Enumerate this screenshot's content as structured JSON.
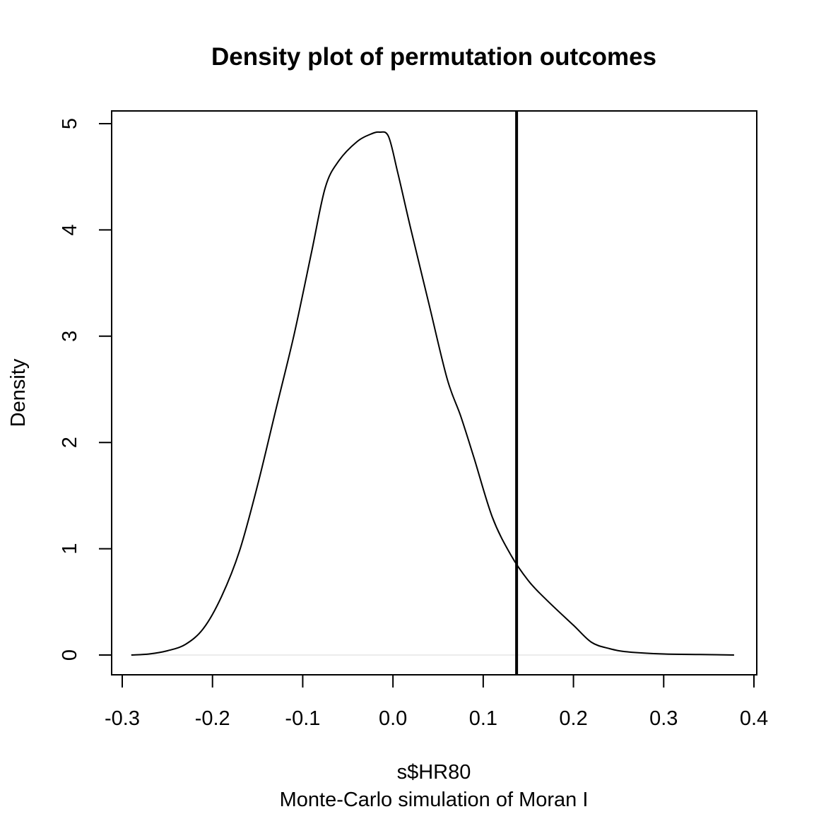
{
  "chart_data": {
    "type": "line",
    "title": "Density plot of permutation outcomes",
    "xlabel": "s$HR80",
    "subtitle": "Monte-Carlo simulation of Moran I",
    "ylabel": "Density",
    "xlim": [
      -0.3,
      0.4
    ],
    "ylim": [
      0,
      5
    ],
    "x_ticks": [
      -0.3,
      -0.2,
      -0.1,
      0.0,
      0.1,
      0.2,
      0.3,
      0.4
    ],
    "x_tick_labels": [
      "-0.3",
      "-0.2",
      "-0.1",
      "0.0",
      "0.1",
      "0.2",
      "0.3",
      "0.4"
    ],
    "y_ticks": [
      0,
      1,
      2,
      3,
      4,
      5
    ],
    "y_tick_labels": [
      "0",
      "1",
      "2",
      "3",
      "4",
      "5"
    ],
    "grid": false,
    "vertical_line": {
      "x": 0.137
    },
    "series": [
      {
        "x": [
          -0.29,
          -0.27,
          -0.25,
          -0.23,
          -0.21,
          -0.19,
          -0.17,
          -0.15,
          -0.13,
          -0.11,
          -0.09,
          -0.075,
          -0.06,
          -0.04,
          -0.025,
          -0.015,
          -0.005,
          0.005,
          0.02,
          0.04,
          0.06,
          0.075,
          0.09,
          0.11,
          0.13,
          0.15,
          0.17,
          0.2,
          0.22,
          0.24,
          0.26,
          0.3,
          0.34,
          0.378
        ],
        "y": [
          0.0,
          0.01,
          0.04,
          0.1,
          0.25,
          0.55,
          0.98,
          1.6,
          2.3,
          3.0,
          3.8,
          4.4,
          4.65,
          4.83,
          4.9,
          4.92,
          4.88,
          4.55,
          4.0,
          3.3,
          2.6,
          2.25,
          1.85,
          1.3,
          0.95,
          0.7,
          0.52,
          0.28,
          0.12,
          0.06,
          0.03,
          0.01,
          0.005,
          0.0
        ]
      }
    ]
  }
}
